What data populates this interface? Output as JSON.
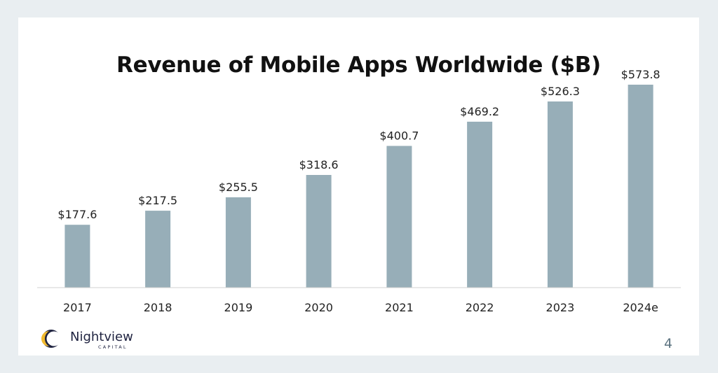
{
  "chart_data": {
    "type": "bar",
    "title": "Revenue of Mobile Apps Worldwide ($B)",
    "categories": [
      "2017",
      "2018",
      "2019",
      "2020",
      "2021",
      "2022",
      "2023",
      "2024e"
    ],
    "values": [
      177.6,
      217.5,
      255.5,
      318.6,
      400.7,
      469.2,
      526.3,
      573.8
    ],
    "data_labels": [
      "$177.6",
      "$217.5",
      "$255.5",
      "$318.6",
      "$400.7",
      "$469.2",
      "$526.3",
      "$573.8"
    ],
    "xlabel": "",
    "ylabel": "",
    "ylim": [
      0,
      600
    ],
    "grid": false,
    "legend": "none",
    "bar_color": "#97aeb8",
    "axis_color": "#d0d0d0"
  },
  "footer": {
    "logo_name": "Nightview",
    "logo_sub": "CAPITAL",
    "logo_mark": "crescent-icon",
    "page_number": "4"
  }
}
